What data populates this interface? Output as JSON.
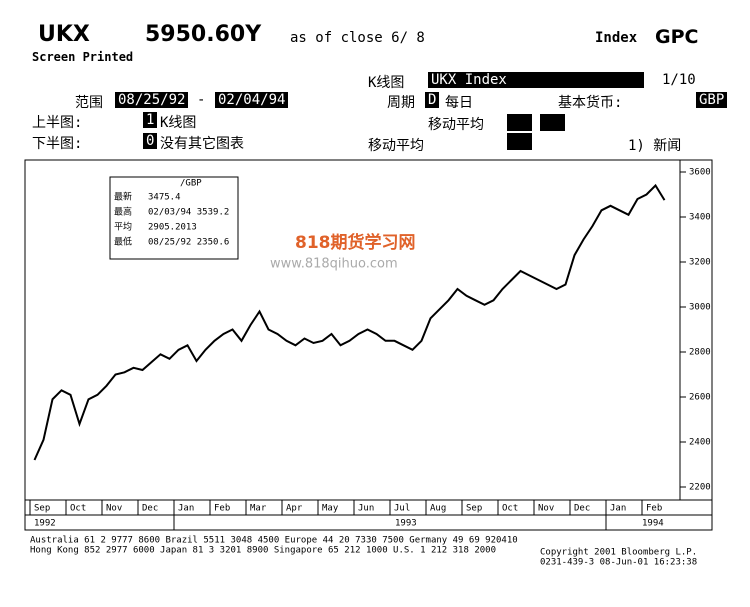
{
  "header": {
    "ticker": "UKX",
    "price": "5950.60Y",
    "as_of": "as of close  6/ 8",
    "security": "Index",
    "function": "GPC",
    "printed": "Screen Printed"
  },
  "controls": {
    "chart_label": "K线图",
    "security_box": "UKX Index",
    "page": "1/10",
    "range_label": "范围",
    "range_start": "08/25/92",
    "range_sep": "-",
    "range_end": "02/04/94",
    "period_label": "周期",
    "period_code": "D",
    "period": "每日",
    "currency_label": "基本货币:",
    "currency": "GBP",
    "upper_label": "上半图:",
    "upper_code": "1",
    "upper": "K线图",
    "ma_upper": "移动平均",
    "lower_label": "下半图:",
    "lower_code": "0",
    "lower": "没有其它图表",
    "ma_lower": "移动平均",
    "news": "1) 新闻"
  },
  "watermark": {
    "title": "818期货学习网",
    "url": "www.818qihuo.com"
  },
  "info": {
    "currency": "/GBP",
    "rows": [
      [
        "最新",
        "3475.4"
      ],
      [
        "最高",
        "02/03/94 3539.2"
      ],
      [
        "平均",
        "2905.2013"
      ],
      [
        "最低",
        "08/25/92 2350.6"
      ]
    ]
  },
  "chart_data": {
    "type": "line",
    "color": "#000000",
    "months": [
      "Sep",
      "Oct",
      "Nov",
      "Dec",
      "Jan",
      "Feb",
      "Mar",
      "Apr",
      "May",
      "Jun",
      "Jul",
      "Aug",
      "Sep",
      "Oct",
      "Nov",
      "Dec",
      "Jan",
      "Feb"
    ],
    "years": [
      "1992",
      "1993",
      "1994"
    ],
    "values": [
      2320,
      2410,
      2590,
      2630,
      2610,
      2480,
      2590,
      2610,
      2650,
      2700,
      2710,
      2730,
      2720,
      2755,
      2790,
      2770,
      2810,
      2830,
      2760,
      2810,
      2850,
      2880,
      2900,
      2850,
      2920,
      2980,
      2900,
      2880,
      2850,
      2830,
      2860,
      2840,
      2850,
      2880,
      2830,
      2850,
      2880,
      2900,
      2880,
      2850,
      2850,
      2830,
      2810,
      2850,
      2950,
      2990,
      3030,
      3080,
      3050,
      3030,
      3010,
      3030,
      3080,
      3120,
      3160,
      3140,
      3120,
      3100,
      3080,
      3100,
      3230,
      3300,
      3360,
      3430,
      3450,
      3430,
      3410,
      3480,
      3500,
      3540,
      3475
    ],
    "ylim": [
      2200,
      3600
    ],
    "yticks": [
      3600,
      3400,
      3200,
      3000,
      2800,
      2600,
      2400,
      2200
    ]
  },
  "footer": {
    "line1": "Australia 61 2 9777 8600   Brazil 5511 3048 4500   Europe 44 20 7330 7500   Germany 49 69 920410",
    "line2": "Hong Kong 852 2977 6000  Japan 81 3 3201 8900  Singapore 65 212 1000  U.S. 1 212 318 2000",
    "copyright": "Copyright 2001 Bloomberg L.P.",
    "stamp": "0231-439-3 08-Jun-01 16:23:38"
  }
}
